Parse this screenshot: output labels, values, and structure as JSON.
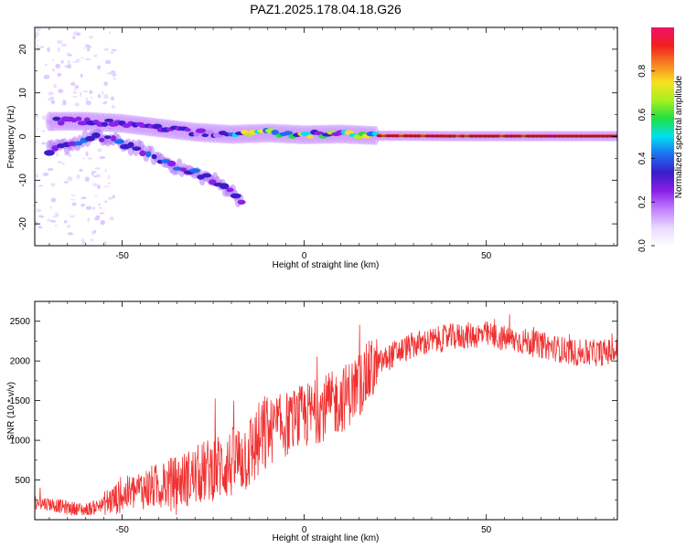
{
  "figure_title": "PAZ1.2025.178.04.18.G26",
  "colors": {
    "snr_line": "#f03030",
    "colormap": [
      "#ffffff",
      "#e8d8ff",
      "#c080ff",
      "#8a20e8",
      "#3a1cc8",
      "#1e6cf0",
      "#00e0f0",
      "#20e040",
      "#a8f020",
      "#f8e020",
      "#f88020",
      "#f02020",
      "#f0106a"
    ]
  },
  "chart_data": [
    {
      "type": "heatmap",
      "xlabel": "Height of straight line (km)",
      "ylabel": "Frequency (Hz)",
      "xlim": [
        -74,
        86
      ],
      "ylim": [
        -25,
        25
      ],
      "xticks": [
        -50,
        0,
        50
      ],
      "yticks": [
        -20,
        -10,
        0,
        10,
        20
      ],
      "colorbar": {
        "label": "Normalized spectral amplitude",
        "range": [
          0,
          1
        ],
        "ticks": [
          "0.0",
          "0.2",
          "0.4",
          "0.6",
          "0.8"
        ]
      },
      "ridges": [
        {
          "name": "main",
          "points": [
            [
              -68,
              3.5
            ],
            [
              -60,
              3.5
            ],
            [
              -50,
              3
            ],
            [
              -40,
              2
            ],
            [
              -30,
              1
            ],
            [
              -20,
              0.5
            ],
            [
              -10,
              0.8
            ],
            [
              0,
              0.4
            ],
            [
              10,
              0.6
            ],
            [
              20,
              0.2
            ],
            [
              40,
              0.1
            ],
            [
              60,
              0.1
            ],
            [
              86,
              0.1
            ]
          ]
        },
        {
          "name": "lower",
          "points": [
            [
              -70,
              -3
            ],
            [
              -65,
              -2
            ],
            [
              -58,
              0
            ],
            [
              -50,
              -1.5
            ],
            [
              -45,
              -3
            ],
            [
              -40,
              -5
            ],
            [
              -35,
              -7
            ],
            [
              -30,
              -8.5
            ],
            [
              -25,
              -10
            ],
            [
              -20,
              -12.5
            ],
            [
              -17,
              -15
            ]
          ]
        }
      ]
    },
    {
      "type": "line",
      "xlabel": "Height of straight line (km)",
      "ylabel": "SNR (10 * v/v)",
      "xlim": [
        -74,
        86
      ],
      "ylim": [
        0,
        2750
      ],
      "xticks": [
        -50,
        0,
        50
      ],
      "yticks": [
        500,
        1000,
        1500,
        2000,
        2500
      ],
      "trend": {
        "x": [
          -74,
          -70,
          -65,
          -60,
          -55,
          -50,
          -45,
          -40,
          -35,
          -30,
          -25,
          -20,
          -15,
          -10,
          -5,
          0,
          5,
          10,
          15,
          20,
          25,
          30,
          35,
          40,
          45,
          50,
          55,
          60,
          65,
          70,
          75,
          80,
          86
        ],
        "y": [
          220,
          200,
          150,
          120,
          200,
          300,
          380,
          420,
          480,
          550,
          650,
          700,
          850,
          1100,
          1200,
          1300,
          1400,
          1500,
          1700,
          1950,
          2100,
          2200,
          2250,
          2300,
          2320,
          2330,
          2280,
          2250,
          2200,
          2150,
          2100,
          2100,
          2120
        ]
      }
    }
  ]
}
